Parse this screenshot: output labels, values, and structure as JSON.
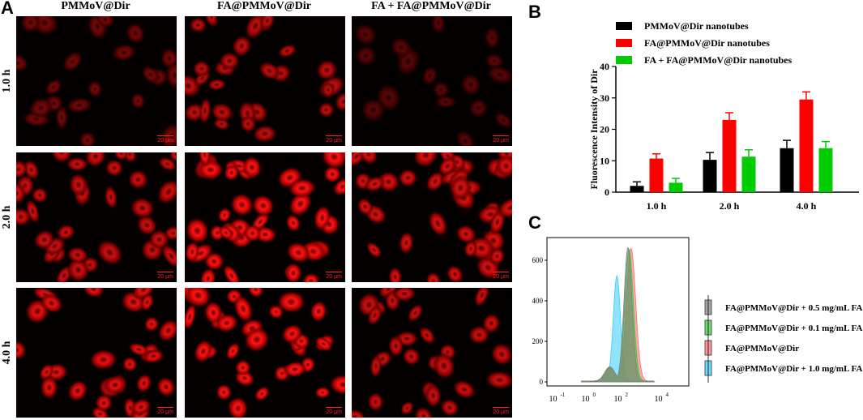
{
  "panelA": {
    "letter": "A",
    "columns": [
      "PMMoV@Dir",
      "FA@PMMoV@Dir",
      "FA + FA@PMMoV@Dir"
    ],
    "rows": [
      "1.0 h",
      "2.0 h",
      "4.0 h"
    ],
    "scale_bar": "20 μm",
    "cell_brightness": [
      [
        0.45,
        0.75,
        0.35
      ],
      [
        0.8,
        1.0,
        0.85
      ],
      [
        0.9,
        1.0,
        0.8
      ]
    ],
    "cell_density": [
      [
        22,
        28,
        18
      ],
      [
        36,
        44,
        40
      ],
      [
        30,
        34,
        30
      ]
    ]
  },
  "panelB": {
    "letter": "B",
    "chart_data": {
      "type": "bar",
      "categories": [
        "1.0 h",
        "2.0 h",
        "4.0 h"
      ],
      "series": [
        {
          "name": "PMMoV@Dir nanotubes",
          "color": "#000000",
          "values": [
            2,
            10.3,
            14
          ],
          "errors": [
            1.3,
            2.3,
            2.5
          ]
        },
        {
          "name": "FA@PMMoV@Dir nanotubes",
          "color": "#ff0000",
          "values": [
            10.7,
            23,
            29.5
          ],
          "errors": [
            1.5,
            2.3,
            2.4
          ]
        },
        {
          "name": "FA + FA@PMMoV@Dir nanotubes",
          "color": "#00cc00",
          "values": [
            3,
            11.3,
            14
          ],
          "errors": [
            1.4,
            2.2,
            2.1
          ]
        }
      ],
      "ylabel": "Fluorescence Intensity of Dir",
      "ylim": [
        0,
        40
      ],
      "yticks": [
        "0",
        "10",
        "20",
        "30",
        "40"
      ],
      "legend_position": "top"
    }
  },
  "panelC": {
    "letter": "C",
    "chart_data": {
      "type": "area",
      "ylabel": "Count",
      "yticks": [
        "0",
        "200",
        "400",
        "600"
      ],
      "xticks": [
        "10",
        "10",
        "10",
        "10",
        "10"
      ],
      "xtick_exponents": [
        "-1",
        "0",
        "2",
        "4",
        ""
      ],
      "xlim_log10": [
        -1.5,
        5.5
      ],
      "ylim": [
        0,
        700
      ],
      "series": [
        {
          "name": "FA@PMMoV@Dir + 0.5 mg/mL FA",
          "color": "#808080",
          "peak_log10": 2.5,
          "peak_count": 660,
          "width": 0.28
        },
        {
          "name": "FA@PMMoV@Dir + 0.1 mg/mL FA",
          "color": "#33cc33",
          "peak_log10": 2.55,
          "peak_count": 650,
          "width": 0.3
        },
        {
          "name": "FA@PMMoV@Dir",
          "color": "#ff6666",
          "peak_log10": 2.65,
          "peak_count": 655,
          "width": 0.32
        },
        {
          "name": "FA@PMMoV@Dir + 1.0 mg/mL FA",
          "color": "#33ccff",
          "peak_log10": 1.95,
          "peak_count": 520,
          "width": 0.25
        }
      ]
    }
  }
}
